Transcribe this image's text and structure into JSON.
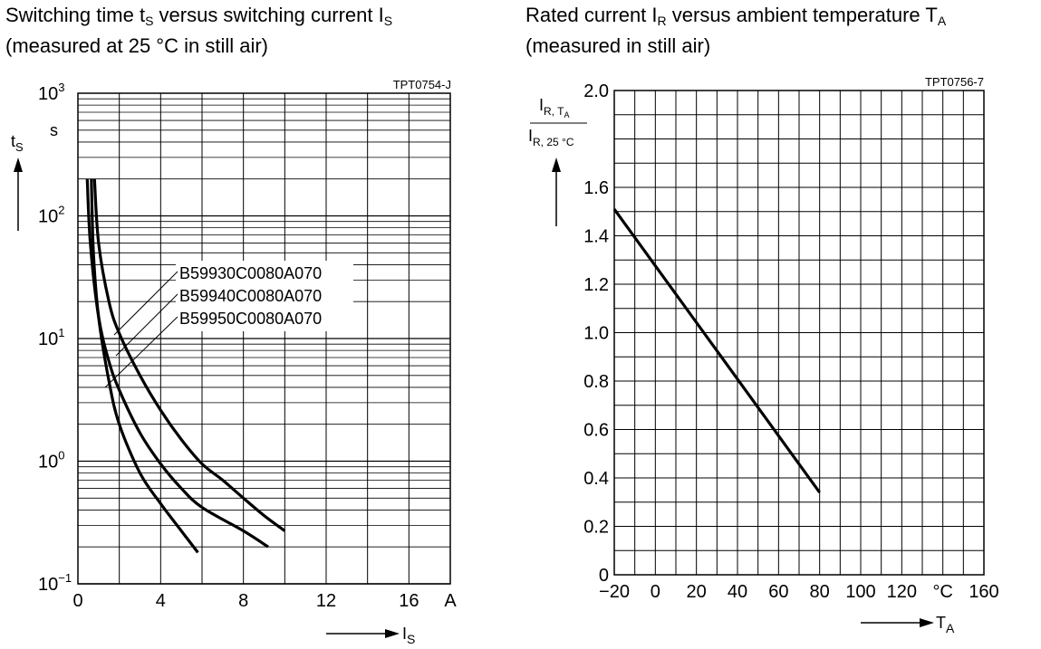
{
  "chart_data": [
    {
      "type": "line",
      "title_line1": {
        "main": "Switching time t",
        "sub1": "S",
        "mid": " versus switching current I",
        "sub2": "S"
      },
      "title_line2": "(measured at 25 °C in still air)",
      "code": "TPT0754-J",
      "y_scale": "log",
      "ylim": [
        0.1,
        1000
      ],
      "xlim": [
        0,
        18
      ],
      "ylabel": {
        "main": "t",
        "sub": "S",
        "unit": "s"
      },
      "xlabel": {
        "main": "I",
        "sub": "S",
        "unit": "A"
      },
      "ytick_labels": [
        {
          "base": "10",
          "exp": "3",
          "value": 1000
        },
        {
          "base": "10",
          "exp": "2",
          "value": 100
        },
        {
          "base": "10",
          "exp": "1",
          "value": 10
        },
        {
          "base": "10",
          "exp": "0",
          "value": 1
        },
        {
          "base": "10",
          "exp": "−1",
          "value": 0.1
        }
      ],
      "xtick_labels": [
        "0",
        "4",
        "8",
        "12",
        "16"
      ],
      "xticks": [
        0,
        4,
        8,
        12,
        16
      ],
      "grid": true,
      "series": [
        {
          "name": "B59930C0080A070",
          "points": [
            [
              0.65,
              200
            ],
            [
              0.75,
              50
            ],
            [
              1.0,
              15
            ],
            [
              1.5,
              4.5
            ],
            [
              2.0,
              2.0
            ],
            [
              3.0,
              0.8
            ],
            [
              4.0,
              0.45
            ],
            [
              5.0,
              0.27
            ],
            [
              5.8,
              0.18
            ]
          ]
        },
        {
          "name": "B59940C0080A070",
          "points": [
            [
              0.45,
              200
            ],
            [
              0.6,
              60
            ],
            [
              1.0,
              15
            ],
            [
              1.5,
              6.5
            ],
            [
              2.0,
              3.8
            ],
            [
              3.0,
              1.7
            ],
            [
              4.0,
              0.95
            ],
            [
              5.0,
              0.6
            ],
            [
              6.0,
              0.42
            ],
            [
              8.0,
              0.27
            ],
            [
              9.2,
              0.2
            ]
          ]
        },
        {
          "name": "B59950C0080A070",
          "points": [
            [
              0.8,
              200
            ],
            [
              1.0,
              60
            ],
            [
              1.5,
              20
            ],
            [
              2.0,
              11
            ],
            [
              3.0,
              5
            ],
            [
              4.0,
              2.6
            ],
            [
              5.0,
              1.5
            ],
            [
              6.0,
              0.95
            ],
            [
              7.0,
              0.7
            ],
            [
              8.0,
              0.5
            ],
            [
              9.0,
              0.36
            ],
            [
              10.0,
              0.27
            ]
          ]
        }
      ]
    },
    {
      "type": "line",
      "title_line1": {
        "main": "Rated current I",
        "sub1": "R",
        "mid": " versus ambient temperature T",
        "sub2": "A"
      },
      "title_line2": "(measured in still air)",
      "code": "TPT0756-7",
      "xlim": [
        -20,
        160
      ],
      "ylim": [
        0,
        2.0
      ],
      "ylabel": {
        "num": "I",
        "num_sub": "R, T",
        "num_subsub": "A",
        "den": "I",
        "den_sub": "R, 25 °C"
      },
      "xlabel": {
        "main": "T",
        "sub": "A",
        "unit": "°C"
      },
      "xtick_labels": [
        "−20",
        "0",
        "20",
        "40",
        "60",
        "80",
        "100",
        "120",
        "160"
      ],
      "xticks": [
        -20,
        0,
        20,
        40,
        60,
        80,
        100,
        120,
        160
      ],
      "ytick_labels": [
        "2.0",
        "1.6",
        "1.4",
        "1.2",
        "1.0",
        "0.8",
        "0.6",
        "0.4",
        "0.2",
        "0"
      ],
      "yticks": [
        2.0,
        1.6,
        1.4,
        1.2,
        1.0,
        0.8,
        0.6,
        0.4,
        0.2,
        0
      ],
      "grid": true,
      "series": [
        {
          "points": [
            [
              -20,
              1.51
            ],
            [
              80,
              0.34
            ]
          ]
        }
      ]
    }
  ]
}
